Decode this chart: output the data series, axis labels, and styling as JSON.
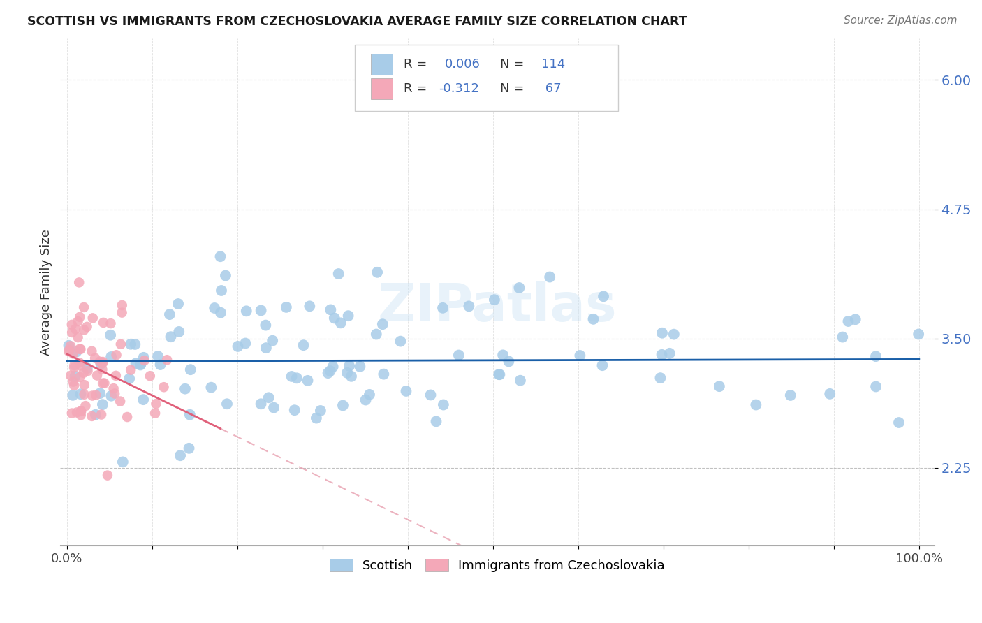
{
  "title": "SCOTTISH VS IMMIGRANTS FROM CZECHOSLOVAKIA AVERAGE FAMILY SIZE CORRELATION CHART",
  "source": "Source: ZipAtlas.com",
  "ylabel": "Average Family Size",
  "background": "#ffffff",
  "watermark": "ZIPatlas",
  "scottish_color": "#a8cce8",
  "czech_color": "#f4a8b8",
  "scottish_line_color": "#1a5fa8",
  "czech_line_color": "#e0607a",
  "czech_ext_color": "#e8a0b0",
  "ytick_color": "#4472c4",
  "yticks": [
    2.25,
    3.5,
    4.75,
    6.0
  ],
  "ymin": 1.5,
  "ymax": 6.4,
  "legend_entries": [
    {
      "color": "#a8cce8",
      "R": "0.006",
      "N": "114"
    },
    {
      "color": "#f4a8b8",
      "R": "-0.312",
      "N": "67"
    }
  ]
}
